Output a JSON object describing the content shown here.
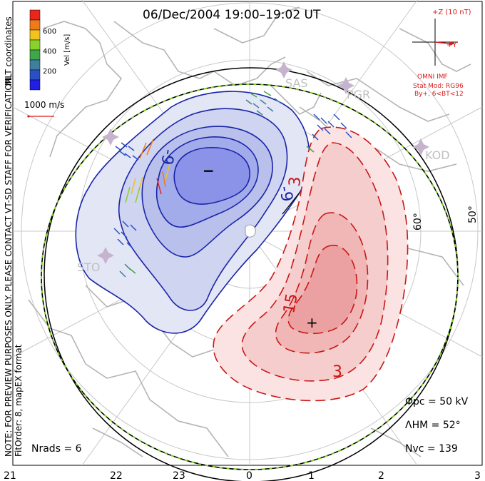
{
  "title": "06/Dec/2004 19:00–19:02 UT",
  "colorbar": {
    "label": "Vel [m/s]",
    "ticks": [
      "600",
      "400",
      "200"
    ],
    "colors": [
      "#e8261c",
      "#f07a1a",
      "#f2c21d",
      "#8bd12c",
      "#3fa64a",
      "#3d7f9c",
      "#2a50c4",
      "#1f1fe6"
    ]
  },
  "coord_label": "MLT coordinates",
  "ref_vector": "1000 m/s",
  "side_note": "NOTE: FOR PREVIEW PURPOSES ONLY. PLEASE CONTACT VT-SD STAFF FOR VERIFICATION.",
  "fit_order": "FitOrder: 8, mapEX format",
  "imf": {
    "z_label": "+Z (10 nT)",
    "y_label": "+Y",
    "source": "OMNI IMF",
    "stat_mod": "Stat Mod: RG96",
    "condition": "By+, 6<BT<12"
  },
  "stations": [
    "SAS",
    "PGR",
    "KOD",
    "STO"
  ],
  "lat_labels": [
    "60°",
    "50°"
  ],
  "contour_labels": {
    "neg": [
      "-9",
      "-9"
    ],
    "pos": [
      "3",
      "15",
      "3"
    ],
    "min_marker": "−",
    "max_marker": "+"
  },
  "stats": {
    "phi_pc": "Φpc = 50 kV",
    "lambda_hm": "ΛHM = 52°",
    "n_vc": "Nvc = 139",
    "n_rads": "Nrads = 6"
  },
  "mlt_ticks": [
    "21",
    "22",
    "23",
    "0",
    "1",
    "2",
    "3"
  ],
  "colors": {
    "neg_contour": "#1a24a8",
    "pos_contour": "#c81818",
    "imf_red": "#d91a1a",
    "grid": "#c8c8c8",
    "coast": "#b4b4b4",
    "boundary_green": "#7ed321"
  }
}
